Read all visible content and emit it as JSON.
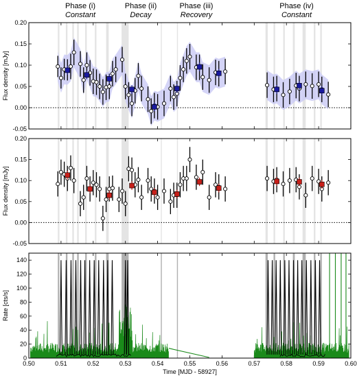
{
  "phases": [
    {
      "label": "Phase (i)",
      "sub": "Constant"
    },
    {
      "label": "Phase (ii)",
      "sub": "Decay"
    },
    {
      "label": "Phase (iii)",
      "sub": "Recovery"
    },
    {
      "label": "Phase (iv)",
      "sub": "Constant"
    }
  ],
  "chart_data": [
    {
      "type": "scatter",
      "panel": "top",
      "ylabel": "Flux density [mJy]",
      "xlim": [
        0.5,
        0.6
      ],
      "ylim": [
        -0.05,
        0.2
      ],
      "yticks": [
        "-0.05",
        "0.00",
        "0.05",
        "0.10",
        "0.15",
        "0.20"
      ],
      "zero_line": "dotted",
      "colors": {
        "points": "#ffffff",
        "binned": "#1a1aa0",
        "band": "#c9c9f5"
      },
      "series": [
        {
          "kind": "points",
          "x": [
            0.509,
            0.51,
            0.511,
            0.512,
            0.513,
            0.514,
            0.516,
            0.517,
            0.518,
            0.519,
            0.52,
            0.521,
            0.522,
            0.523,
            0.524,
            0.525,
            0.526,
            0.527,
            0.529,
            0.53,
            0.531,
            0.532,
            0.533,
            0.534,
            0.535,
            0.537,
            0.538,
            0.539,
            0.54,
            0.542,
            0.544,
            0.545,
            0.546,
            0.547,
            0.548,
            0.549,
            0.55,
            0.552,
            0.553,
            0.554,
            0.556,
            0.558,
            0.559,
            0.561,
            0.574,
            0.576,
            0.577,
            0.579,
            0.581,
            0.583,
            0.584,
            0.586,
            0.588,
            0.59,
            0.591,
            0.593
          ],
          "y": [
            0.097,
            0.07,
            0.09,
            0.089,
            0.097,
            0.13,
            0.103,
            0.065,
            0.1,
            0.082,
            0.062,
            0.06,
            0.05,
            0.037,
            0.048,
            0.05,
            0.08,
            0.09,
            0.113,
            0.05,
            0.03,
            0.01,
            0.04,
            0.075,
            0.045,
            0.02,
            -0.008,
            0.005,
            0.002,
            0.01,
            0.045,
            0.025,
            0.033,
            0.07,
            0.09,
            0.11,
            0.12,
            0.095,
            0.095,
            0.072,
            0.065,
            0.083,
            0.08,
            0.085,
            0.053,
            0.043,
            0.045,
            0.03,
            0.038,
            0.052,
            0.045,
            0.055,
            0.051,
            0.055,
            0.043,
            0.031
          ],
          "err": [
            0.025,
            0.025,
            0.025,
            0.025,
            0.03,
            0.03,
            0.03,
            0.03,
            0.03,
            0.03,
            0.03,
            0.03,
            0.03,
            0.03,
            0.03,
            0.03,
            0.03,
            0.03,
            0.03,
            0.03,
            0.03,
            0.03,
            0.03,
            0.03,
            0.03,
            0.03,
            0.03,
            0.03,
            0.03,
            0.03,
            0.03,
            0.03,
            0.03,
            0.03,
            0.03,
            0.03,
            0.03,
            0.03,
            0.03,
            0.03,
            0.03,
            0.03,
            0.03,
            0.03,
            0.03,
            0.03,
            0.03,
            0.03,
            0.03,
            0.03,
            0.03,
            0.03,
            0.03,
            0.03,
            0.03,
            0.03
          ]
        },
        {
          "kind": "binned",
          "x": [
            0.512,
            0.518,
            0.525,
            0.532,
            0.539,
            0.546,
            0.553,
            0.559,
            0.577,
            0.584,
            0.591
          ],
          "y": [
            0.088,
            0.077,
            0.068,
            0.043,
            0.002,
            0.045,
            0.096,
            0.081,
            0.043,
            0.052,
            0.04
          ],
          "err": [
            0.01,
            0.01,
            0.01,
            0.01,
            0.01,
            0.01,
            0.01,
            0.01,
            0.01,
            0.01,
            0.01
          ]
        }
      ]
    },
    {
      "type": "scatter",
      "panel": "middle",
      "ylabel": "Flux density [mJy]",
      "xlim": [
        0.5,
        0.6
      ],
      "ylim": [
        -0.05,
        0.2
      ],
      "yticks": [
        "-0.05",
        "0.00",
        "0.05",
        "0.10",
        "0.15",
        "0.20"
      ],
      "zero_line": "dotted",
      "colors": {
        "points": "#ffffff",
        "binned": "#c8201a"
      },
      "series": [
        {
          "kind": "points",
          "x": [
            0.509,
            0.51,
            0.511,
            0.512,
            0.513,
            0.514,
            0.516,
            0.517,
            0.518,
            0.519,
            0.52,
            0.521,
            0.522,
            0.523,
            0.524,
            0.525,
            0.526,
            0.528,
            0.529,
            0.53,
            0.531,
            0.532,
            0.533,
            0.534,
            0.535,
            0.537,
            0.538,
            0.539,
            0.54,
            0.542,
            0.544,
            0.545,
            0.546,
            0.547,
            0.548,
            0.549,
            0.55,
            0.552,
            0.554,
            0.556,
            0.558,
            0.559,
            0.561,
            0.574,
            0.576,
            0.577,
            0.579,
            0.581,
            0.583,
            0.584,
            0.586,
            0.588,
            0.59,
            0.591,
            0.593
          ],
          "y": [
            0.092,
            0.12,
            0.115,
            0.105,
            0.13,
            0.1,
            0.045,
            0.06,
            0.105,
            0.08,
            0.095,
            0.09,
            0.08,
            0.01,
            0.055,
            0.08,
            0.082,
            0.055,
            0.075,
            0.045,
            0.128,
            0.125,
            0.09,
            0.102,
            0.06,
            0.1,
            0.08,
            0.075,
            0.06,
            0.075,
            0.05,
            0.065,
            0.065,
            0.09,
            0.105,
            0.105,
            0.15,
            0.108,
            0.12,
            0.06,
            0.09,
            0.085,
            0.08,
            0.105,
            0.098,
            0.102,
            0.092,
            0.1,
            0.102,
            0.085,
            0.065,
            0.105,
            0.098,
            0.08,
            0.095
          ],
          "err": [
            0.03,
            0.03,
            0.03,
            0.03,
            0.03,
            0.03,
            0.03,
            0.03,
            0.03,
            0.03,
            0.03,
            0.03,
            0.03,
            0.03,
            0.03,
            0.03,
            0.03,
            0.03,
            0.03,
            0.03,
            0.03,
            0.03,
            0.03,
            0.03,
            0.03,
            0.03,
            0.03,
            0.03,
            0.03,
            0.03,
            0.03,
            0.03,
            0.03,
            0.03,
            0.03,
            0.03,
            0.03,
            0.03,
            0.03,
            0.03,
            0.03,
            0.03,
            0.03,
            0.03,
            0.03,
            0.03,
            0.03,
            0.03,
            0.03,
            0.03,
            0.03,
            0.03,
            0.03,
            0.03,
            0.03
          ]
        },
        {
          "kind": "binned",
          "x": [
            0.512,
            0.519,
            0.525,
            0.532,
            0.539,
            0.546,
            0.553,
            0.559,
            0.577,
            0.584,
            0.591
          ],
          "y": [
            0.113,
            0.08,
            0.065,
            0.088,
            0.072,
            0.068,
            0.097,
            0.082,
            0.098,
            0.097,
            0.091
          ],
          "err": [
            0.01,
            0.01,
            0.01,
            0.01,
            0.01,
            0.01,
            0.01,
            0.01,
            0.01,
            0.01,
            0.01
          ]
        }
      ]
    },
    {
      "type": "line",
      "panel": "bottom",
      "xlabel": "Time [MJD - 58927]",
      "ylabel": "Rate [cts/s]",
      "xlim": [
        0.5,
        0.6
      ],
      "ylim": [
        0,
        150
      ],
      "xticks": [
        "0.50",
        "0.51",
        "0.52",
        "0.53",
        "0.54",
        "0.55",
        "0.56",
        "0.57",
        "0.58",
        "0.59",
        "0.60"
      ],
      "yticks": [
        "0",
        "20",
        "40",
        "60",
        "80",
        "100",
        "120",
        "140"
      ],
      "colors": {
        "black_series": "#000000",
        "green_series": "#1a8a1a"
      },
      "black_bursts": [
        0.51,
        0.5116,
        0.5131,
        0.5146,
        0.5161,
        0.5174,
        0.5189,
        0.5203,
        0.5217,
        0.5232,
        0.5245,
        0.5259,
        0.53,
        0.5307,
        0.5743,
        0.5756,
        0.5768,
        0.5781,
        0.5795,
        0.5808,
        0.5822,
        0.5835,
        0.5848,
        0.5862,
        0.5876,
        0.589,
        0.5903
      ]
    }
  ]
}
